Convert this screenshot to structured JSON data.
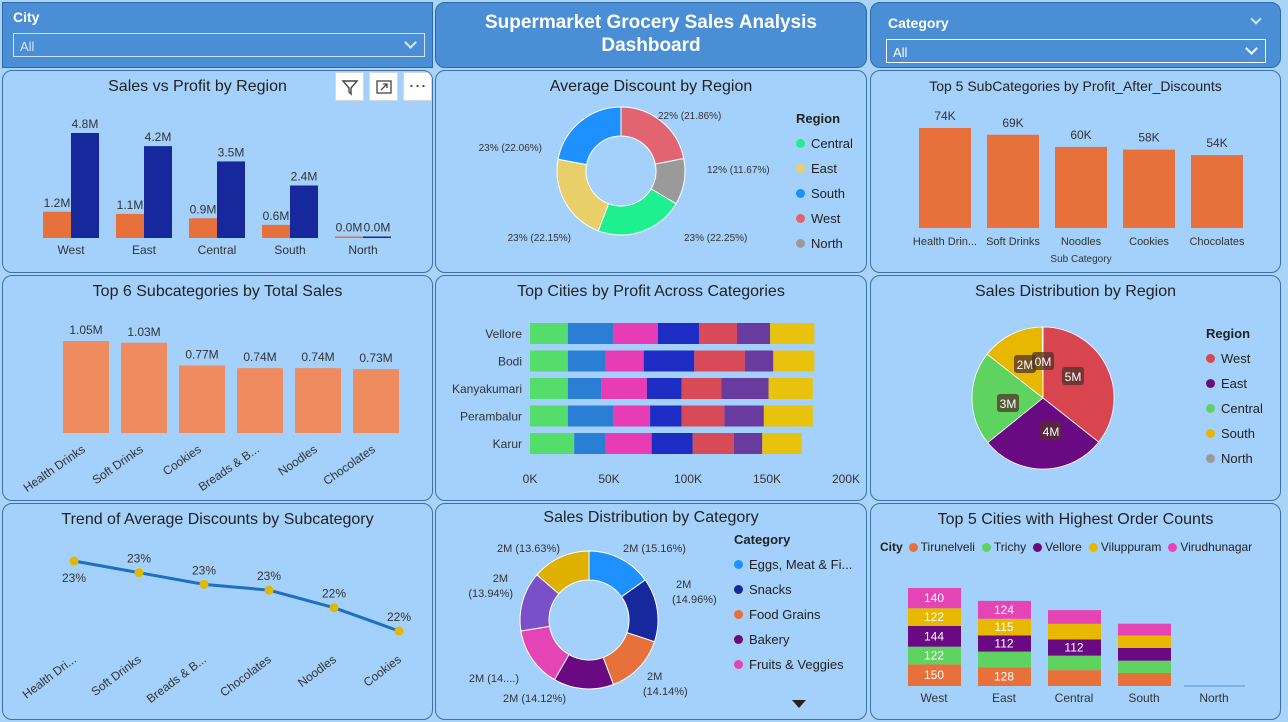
{
  "colors": {
    "accent_orange": "#e8703a",
    "navy": "#17279c",
    "panel": "#a3d1fb",
    "header_blue": "#4a8fd6"
  },
  "header": {
    "title_line1": "Supermarket Grocery Sales Analysis",
    "title_line2": "Dashboard"
  },
  "city_slicer": {
    "label": "City",
    "value": "All"
  },
  "category_slicer": {
    "label": "Category",
    "value": "All"
  },
  "toolbar_icons": [
    "filter-icon",
    "focus-mode-icon",
    "more-options-icon"
  ],
  "panels": {
    "sales_profit": "Sales vs Profit by Region",
    "avg_discount": "Average Discount by Region",
    "top5_profit": "Top 5 SubCategories by Profit_After_Discounts",
    "top6_sales": "Top 6 Subcategories by Total Sales",
    "top_cities": "Top Cities by Profit Across Categories",
    "sales_dist_region": "Sales Distribution by Region",
    "trend_discounts": "Trend of Average Discounts by Subcategory",
    "sales_dist_category": "Sales Distribution by Category",
    "top5_cities_orders": "Top 5 Cities with Highest Order Counts"
  },
  "chart_data": [
    {
      "id": "sales_profit",
      "type": "bar",
      "categories": [
        "West",
        "East",
        "Central",
        "South",
        "North"
      ],
      "series": [
        {
          "values": [
            1.2,
            1.1,
            0.9,
            0.6,
            0.0
          ],
          "color": "#e8703a"
        },
        {
          "values": [
            4.8,
            4.2,
            3.5,
            2.4,
            0.0
          ],
          "color": "#17279c"
        }
      ],
      "labels": [
        [
          "1.2M",
          "1.1M",
          "0.9M",
          "0.6M",
          "0.0M"
        ],
        [
          "4.8M",
          "4.2M",
          "3.5M",
          "2.4M",
          "0.0M"
        ]
      ]
    },
    {
      "id": "avg_discount",
      "type": "pie",
      "legend_title": "Region",
      "slices": [
        {
          "name": "Central",
          "value": 22.25,
          "label": "23% (22.25%)",
          "color": "#1ff08f"
        },
        {
          "name": "East",
          "value": 22.15,
          "label": "23% (22.15%)",
          "color": "#e8cf6a"
        },
        {
          "name": "South",
          "value": 22.06,
          "label": "23% (22.06%)",
          "color": "#1e90ff"
        },
        {
          "name": "West",
          "value": 21.86,
          "label": "22% (21.86%)",
          "color": "#e16470"
        },
        {
          "name": "North",
          "value": 11.67,
          "label": "12% (11.67%)",
          "color": "#9a9a9a"
        }
      ]
    },
    {
      "id": "top5_profit",
      "type": "bar",
      "xlabel": "Sub Category",
      "categories": [
        "Health Drin...",
        "Soft Drinks",
        "Noodles",
        "Cookies",
        "Chocolates"
      ],
      "values": [
        74,
        69,
        60,
        58,
        54
      ],
      "labels": [
        "74K",
        "69K",
        "60K",
        "58K",
        "54K"
      ]
    },
    {
      "id": "top6_sales",
      "type": "bar",
      "categories": [
        "Health Drinks",
        "Soft Drinks",
        "Cookies",
        "Breads & B...",
        "Noodles",
        "Chocolates"
      ],
      "values": [
        1.05,
        1.03,
        0.77,
        0.74,
        0.74,
        0.73
      ],
      "labels": [
        "1.05M",
        "1.03M",
        "0.77M",
        "0.74M",
        "0.74M",
        "0.73M"
      ]
    },
    {
      "id": "top_cities",
      "type": "bar",
      "orientation": "horizontal",
      "stacked": true,
      "categories": [
        "Vellore",
        "Bodi",
        "Kanyakumari",
        "Perambalur",
        "Karur"
      ],
      "xticks": [
        "0K",
        "50K",
        "100K",
        "150K",
        "200K"
      ],
      "xlim": [
        0,
        200
      ],
      "segment_colors": [
        "#54dd6a",
        "#2a7fd4",
        "#e83cb4",
        "#1d2dc4",
        "#d94a58",
        "#6a3b9e",
        "#e8c20c"
      ],
      "rows": [
        [
          24,
          29,
          28,
          26,
          24,
          21,
          28
        ],
        [
          24,
          24,
          24,
          32,
          32,
          18,
          26
        ],
        [
          24,
          21,
          29,
          22,
          25,
          30,
          28
        ],
        [
          24,
          29,
          23,
          20,
          27,
          25,
          31
        ],
        [
          28,
          20,
          29,
          26,
          26,
          18,
          25
        ]
      ]
    },
    {
      "id": "sales_dist_region",
      "type": "pie",
      "legend_title": "Region",
      "slices": [
        {
          "name": "West",
          "value": 5,
          "label": "5M",
          "color": "#d8454f"
        },
        {
          "name": "East",
          "value": 4,
          "label": "4M",
          "color": "#6a0a82"
        },
        {
          "name": "Central",
          "value": 3,
          "label": "3M",
          "color": "#5fd35f"
        },
        {
          "name": "South",
          "value": 2,
          "label": "2M",
          "color": "#e8b800"
        },
        {
          "name": "North",
          "value": 0.02,
          "label": "0M",
          "color": "#999999"
        }
      ]
    },
    {
      "id": "trend_discounts",
      "type": "line",
      "categories": [
        "Health Dri...",
        "Soft Drinks",
        "Breads & B...",
        "Chocolates",
        "Noodles",
        "Cookies"
      ],
      "values": [
        23.0,
        22.8,
        22.6,
        22.5,
        22.2,
        21.8
      ],
      "labels": [
        "23%",
        "23%",
        "23%",
        "23%",
        "22%",
        "22%"
      ]
    },
    {
      "id": "sales_dist_category",
      "type": "pie",
      "legend_title": "Category",
      "slices": [
        {
          "name": "Eggs, Meat & Fi...",
          "value": 15.16,
          "label": "2M (15.16%)",
          "color": "#1e90ff"
        },
        {
          "name": "Snacks",
          "value": 14.96,
          "label": "2M (14.96%)",
          "color": "#17279c"
        },
        {
          "name": "Food Grains",
          "value": 14.14,
          "label": "2M (14.14%)",
          "color": "#e8703a"
        },
        {
          "name": "Bakery",
          "value": 14.12,
          "label": "2M (14.12%)",
          "color": "#6a0a82"
        },
        {
          "name": "Fruits & Veggies",
          "value": 14.1,
          "label": "2M (14....)",
          "color": "#e545b4"
        },
        {
          "name": "",
          "value": 13.94,
          "label": "2M (13.94%)",
          "color": "#7a4fc8"
        },
        {
          "name": "",
          "value": 13.63,
          "label": "2M (13.63%)",
          "color": "#e0b000"
        }
      ]
    },
    {
      "id": "top5_cities_orders",
      "type": "bar",
      "stacked": true,
      "legend_title": "City",
      "categories": [
        "West",
        "East",
        "Central",
        "South",
        "North"
      ],
      "series": [
        {
          "name": "Tirunelveli",
          "color": "#e8703a",
          "values": [
            150,
            128,
            110,
            90,
            0
          ]
        },
        {
          "name": "Trichy",
          "color": "#5fd35f",
          "values": [
            122,
            110,
            100,
            85,
            0
          ]
        },
        {
          "name": "Vellore",
          "color": "#6a0a82",
          "values": [
            144,
            112,
            112,
            88,
            0
          ]
        },
        {
          "name": "Viluppuram",
          "color": "#e8b800",
          "values": [
            122,
            115,
            108,
            86,
            0
          ]
        },
        {
          "name": "Virudhunagar",
          "color": "#e545b4",
          "values": [
            140,
            124,
            95,
            82,
            0
          ]
        }
      ],
      "labels": [
        [
          "150",
          "122",
          "144",
          "122",
          "140"
        ],
        [
          "128",
          "",
          "112",
          "115",
          "124"
        ],
        [
          "",
          "",
          "112",
          "",
          ""
        ],
        [
          "",
          "",
          "",
          "",
          ""
        ],
        [
          "",
          "",
          "",
          "",
          ""
        ]
      ]
    }
  ]
}
